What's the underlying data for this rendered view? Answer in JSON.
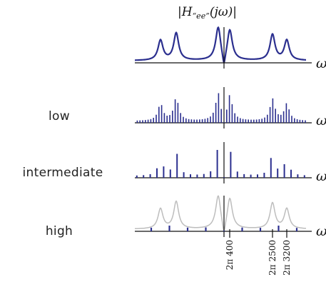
{
  "title": "|H“ee”(jω)|",
  "axis_symbol": "ω",
  "panels": [
    {
      "label": "",
      "mode": "continuous"
    },
    {
      "label": "low",
      "mode": "dense-samples"
    },
    {
      "label": "intermediate",
      "mode": "medium-samples"
    },
    {
      "label": "high",
      "mode": "sparse-samples"
    }
  ],
  "tick_labels": [
    "2π 400",
    "2π 2500",
    "2π 3200"
  ],
  "colors": {
    "curve": "#2b2f8f",
    "ghost": "#bdbdbd",
    "axis": "#111111"
  }
}
